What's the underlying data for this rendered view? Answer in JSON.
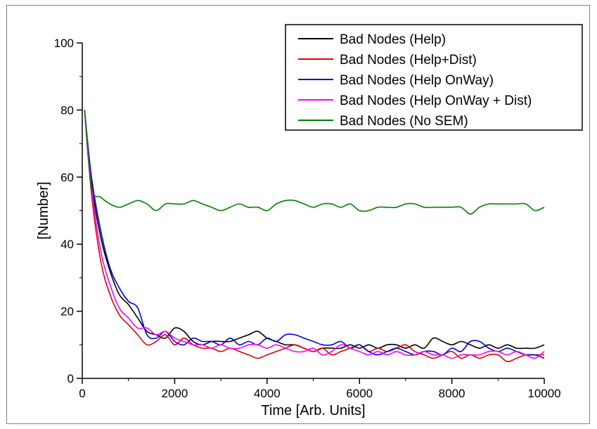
{
  "chart_data": {
    "type": "line",
    "xlabel": "Time [Arb. Units]",
    "ylabel": "[Number]",
    "xlim": [
      0,
      10000
    ],
    "ylim": [
      0,
      100
    ],
    "x_ticks": [
      "0",
      "2000",
      "4000",
      "6000",
      "8000",
      "10000"
    ],
    "y_ticks": [
      "0",
      "20",
      "40",
      "60",
      "80",
      "100"
    ],
    "grid": false,
    "legend_position": "top-right",
    "series": [
      {
        "name": "Bad Nodes (Help)",
        "color": "#000000",
        "x": [
          50,
          200,
          400,
          600,
          800,
          1000,
          1200,
          1400,
          1600,
          1800,
          2000,
          2200,
          2400,
          2600,
          2800,
          3000,
          3200,
          3400,
          3600,
          3800,
          4000,
          4200,
          4400,
          4600,
          4800,
          5000,
          5200,
          5400,
          5600,
          5800,
          6000,
          6200,
          6400,
          6600,
          6800,
          7000,
          7200,
          7400,
          7600,
          7800,
          8000,
          8200,
          8400,
          8600,
          8800,
          9000,
          9200,
          9400,
          9600,
          9800,
          10000
        ],
        "y": [
          80,
          58,
          42,
          32,
          25,
          22,
          18,
          14,
          13,
          12,
          15,
          14,
          11,
          10,
          11,
          11,
          11,
          12,
          13,
          14,
          12,
          11,
          10,
          10,
          9,
          8,
          9,
          9,
          9,
          10,
          9,
          10,
          9,
          10,
          10,
          9,
          10,
          9,
          12,
          11,
          10,
          11,
          10,
          9,
          10,
          9,
          10,
          9,
          9,
          9,
          10
        ]
      },
      {
        "name": "Bad Nodes (Help+Dist)",
        "color": "#e00000",
        "x": [
          50,
          200,
          400,
          600,
          800,
          1000,
          1200,
          1400,
          1600,
          1800,
          2000,
          2200,
          2400,
          2600,
          2800,
          3000,
          3200,
          3400,
          3600,
          3800,
          4000,
          4200,
          4400,
          4600,
          4800,
          5000,
          5200,
          5400,
          5600,
          5800,
          6000,
          6200,
          6400,
          6600,
          6800,
          7000,
          7200,
          7400,
          7600,
          7800,
          8000,
          8200,
          8400,
          8600,
          8800,
          9000,
          9200,
          9400,
          9600,
          9800,
          10000
        ],
        "y": [
          80,
          55,
          35,
          25,
          19,
          16,
          13,
          10,
          11,
          13,
          10,
          12,
          10,
          9,
          9,
          8,
          9,
          8,
          7,
          6,
          7,
          8,
          9,
          10,
          9,
          8,
          9,
          7,
          8,
          9,
          10,
          8,
          9,
          8,
          9,
          10,
          8,
          7,
          6,
          7,
          8,
          6,
          7,
          6,
          7,
          7,
          5,
          6,
          7,
          7,
          7
        ]
      },
      {
        "name": "Bad Nodes (Help OnWay)",
        "color": "#0000e0",
        "x": [
          50,
          200,
          400,
          600,
          800,
          1000,
          1200,
          1400,
          1600,
          1800,
          2000,
          2200,
          2400,
          2600,
          2800,
          3000,
          3200,
          3400,
          3600,
          3800,
          4000,
          4200,
          4400,
          4600,
          4800,
          5000,
          5200,
          5400,
          5600,
          5800,
          6000,
          6200,
          6400,
          6600,
          6800,
          7000,
          7200,
          7400,
          7600,
          7800,
          8000,
          8200,
          8400,
          8600,
          8800,
          9000,
          9200,
          9400,
          9600,
          9800,
          10000
        ],
        "y": [
          80,
          60,
          44,
          33,
          27,
          23,
          21,
          13,
          12,
          14,
          11,
          10,
          12,
          11,
          11,
          10,
          12,
          10,
          11,
          10,
          12,
          11,
          13,
          13,
          12,
          11,
          10,
          10,
          11,
          9,
          10,
          8,
          7,
          8,
          9,
          8,
          7,
          8,
          8,
          7,
          9,
          8,
          11,
          11,
          9,
          8,
          9,
          8,
          7,
          7,
          6
        ]
      },
      {
        "name": "Bad Nodes (Help OnWay + Dist)",
        "color": "#ff00ff",
        "x": [
          50,
          200,
          400,
          600,
          800,
          1000,
          1200,
          1400,
          1600,
          1800,
          2000,
          2200,
          2400,
          2600,
          2800,
          3000,
          3200,
          3400,
          3600,
          3800,
          4000,
          4200,
          4400,
          4600,
          4800,
          5000,
          5200,
          5400,
          5600,
          5800,
          6000,
          6200,
          6400,
          6600,
          6800,
          7000,
          7200,
          7400,
          7600,
          7800,
          8000,
          8200,
          8400,
          8600,
          8800,
          9000,
          9200,
          9400,
          9600,
          9800,
          10000
        ],
        "y": [
          80,
          57,
          38,
          28,
          21,
          18,
          15,
          15,
          13,
          14,
          12,
          11,
          10,
          10,
          9,
          10,
          9,
          9,
          10,
          10,
          9,
          10,
          9,
          8,
          8,
          9,
          7,
          8,
          10,
          9,
          8,
          7,
          8,
          7,
          8,
          7,
          7,
          8,
          7,
          7,
          6,
          7,
          7,
          7,
          8,
          8,
          7,
          8,
          7,
          6,
          8
        ]
      },
      {
        "name": "Bad Nodes (No SEM)",
        "color": "#008000",
        "x": [
          50,
          200,
          400,
          600,
          800,
          1000,
          1200,
          1400,
          1600,
          1800,
          2000,
          2200,
          2400,
          2600,
          2800,
          3000,
          3200,
          3400,
          3600,
          3800,
          4000,
          4200,
          4400,
          4600,
          4800,
          5000,
          5200,
          5400,
          5600,
          5800,
          6000,
          6200,
          6400,
          6600,
          6800,
          7000,
          7200,
          7400,
          7600,
          7800,
          8000,
          8200,
          8400,
          8600,
          8800,
          9000,
          9200,
          9400,
          9600,
          9800,
          10000
        ],
        "y": [
          80,
          57,
          54,
          52,
          51,
          52,
          53,
          52,
          50,
          52,
          52,
          52,
          53,
          52,
          51,
          50,
          51,
          52,
          51,
          51,
          50,
          52,
          53,
          53,
          52,
          51,
          52,
          52,
          51,
          52,
          50,
          50,
          51,
          51,
          51,
          52,
          52,
          51,
          51,
          51,
          51,
          51,
          49,
          51,
          52,
          52,
          52,
          52,
          52,
          50,
          51
        ]
      }
    ]
  }
}
